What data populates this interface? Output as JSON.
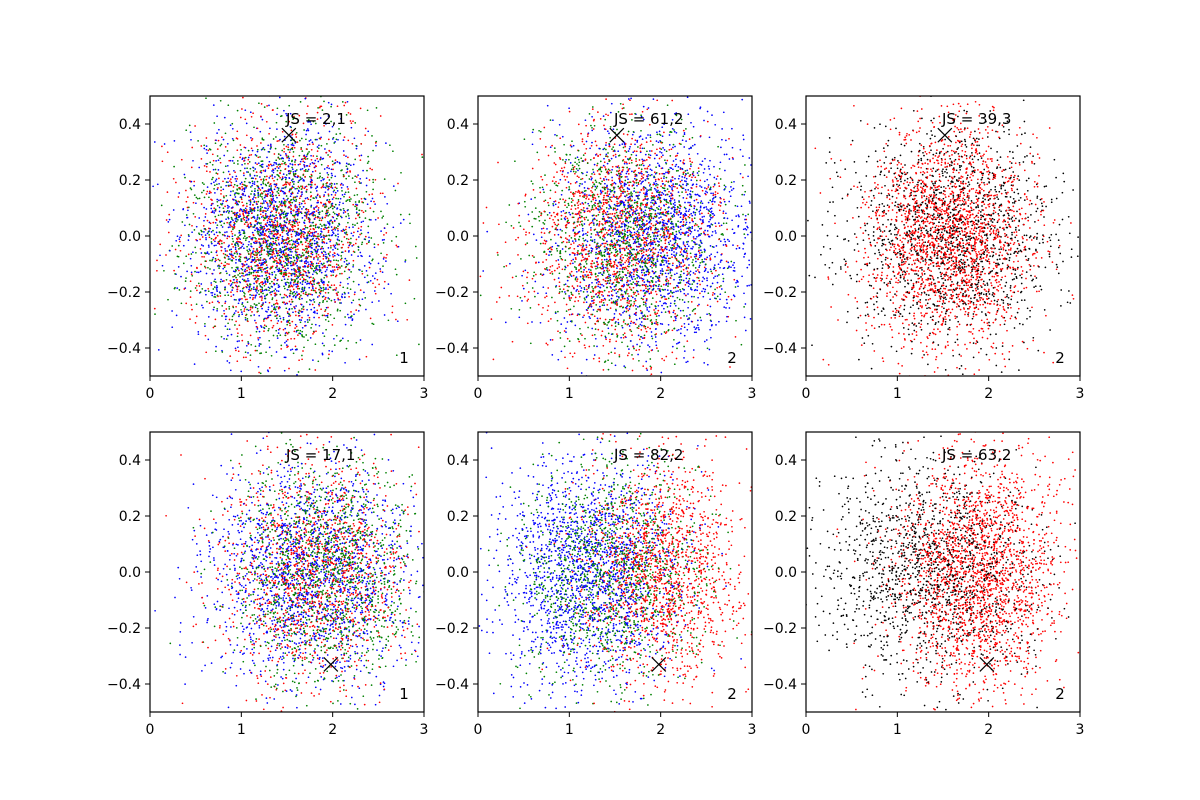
{
  "figure": {
    "layout": "2x3 grid of scatter panels",
    "colors": {
      "blue": "#0000ff",
      "green": "#008000",
      "red": "#ff0000",
      "black": "#000000",
      "marker": "#000000"
    }
  },
  "chart_data": [
    {
      "type": "scatter",
      "title": "",
      "xlabel": "",
      "ylabel": "",
      "xlim": [
        0,
        3
      ],
      "ylim": [
        -0.5,
        0.5
      ],
      "xticks": [
        "0",
        "1",
        "2",
        "3"
      ],
      "yticks": [
        "−0.4",
        "−0.2",
        "0.0",
        "0.2",
        "0.4"
      ],
      "grid": false,
      "annotation": "JS = 2,1",
      "corner_label": "1",
      "marker": {
        "symbol": "x",
        "x": 1.52,
        "y": 0.36
      },
      "series": [
        {
          "color": "#0000ff",
          "center_x": 1.45,
          "center_y": 0.0,
          "spread_x": 0.52,
          "spread_y": 0.2,
          "count": 1600
        },
        {
          "color": "#008000",
          "center_x": 1.45,
          "center_y": 0.0,
          "spread_x": 0.5,
          "spread_y": 0.2,
          "count": 1400
        },
        {
          "color": "#ff0000",
          "center_x": 1.45,
          "center_y": 0.0,
          "spread_x": 0.5,
          "spread_y": 0.2,
          "count": 1300
        }
      ]
    },
    {
      "type": "scatter",
      "title": "",
      "xlabel": "",
      "ylabel": "",
      "xlim": [
        0,
        3
      ],
      "ylim": [
        -0.5,
        0.5
      ],
      "xticks": [
        "0",
        "1",
        "2",
        "3"
      ],
      "yticks": [
        "−0.4",
        "−0.2",
        "0.0",
        "0.2",
        "0.4"
      ],
      "grid": false,
      "annotation": "JS = 61,2",
      "corner_label": "2",
      "marker": {
        "symbol": "x",
        "x": 1.52,
        "y": 0.36
      },
      "series": [
        {
          "color": "#0000ff",
          "center_x": 1.95,
          "center_y": 0.0,
          "spread_x": 0.55,
          "spread_y": 0.2,
          "count": 1700
        },
        {
          "color": "#008000",
          "center_x": 1.6,
          "center_y": 0.0,
          "spread_x": 0.5,
          "spread_y": 0.2,
          "count": 1300
        },
        {
          "color": "#ff0000",
          "center_x": 1.55,
          "center_y": 0.0,
          "spread_x": 0.5,
          "spread_y": 0.2,
          "count": 1500
        }
      ]
    },
    {
      "type": "scatter",
      "title": "",
      "xlabel": "",
      "ylabel": "",
      "xlim": [
        0,
        3
      ],
      "ylim": [
        -0.5,
        0.5
      ],
      "xticks": [
        "0",
        "1",
        "2",
        "3"
      ],
      "yticks": [
        "−0.4",
        "−0.2",
        "0.0",
        "0.2",
        "0.4"
      ],
      "grid": false,
      "annotation": "JS = 39,3",
      "corner_label": "2",
      "marker": {
        "symbol": "x",
        "x": 1.52,
        "y": 0.36
      },
      "series": [
        {
          "color": "#000000",
          "center_x": 1.6,
          "center_y": 0.0,
          "spread_x": 0.6,
          "spread_y": 0.2,
          "count": 1500
        },
        {
          "color": "#ff0000",
          "center_x": 1.55,
          "center_y": 0.0,
          "spread_x": 0.45,
          "spread_y": 0.2,
          "count": 2100
        }
      ]
    },
    {
      "type": "scatter",
      "title": "",
      "xlabel": "",
      "ylabel": "",
      "xlim": [
        0,
        3
      ],
      "ylim": [
        -0.5,
        0.5
      ],
      "xticks": [
        "0",
        "1",
        "2",
        "3"
      ],
      "yticks": [
        "−0.4",
        "−0.2",
        "0.0",
        "0.2",
        "0.4"
      ],
      "grid": false,
      "annotation": "JS = 17,1",
      "corner_label": "1",
      "marker": {
        "symbol": "x",
        "x": 1.98,
        "y": -0.33
      },
      "series": [
        {
          "color": "#0000ff",
          "center_x": 1.75,
          "center_y": 0.0,
          "spread_x": 0.55,
          "spread_y": 0.2,
          "count": 1600
        },
        {
          "color": "#008000",
          "center_x": 1.9,
          "center_y": 0.0,
          "spread_x": 0.5,
          "spread_y": 0.2,
          "count": 1400
        },
        {
          "color": "#ff0000",
          "center_x": 1.8,
          "center_y": 0.0,
          "spread_x": 0.5,
          "spread_y": 0.2,
          "count": 1300
        }
      ]
    },
    {
      "type": "scatter",
      "title": "",
      "xlabel": "",
      "ylabel": "",
      "xlim": [
        0,
        3
      ],
      "ylim": [
        -0.5,
        0.5
      ],
      "xticks": [
        "0",
        "1",
        "2",
        "3"
      ],
      "yticks": [
        "−0.4",
        "−0.2",
        "0.0",
        "0.2",
        "0.4"
      ],
      "grid": false,
      "annotation": "JS = 82,2",
      "corner_label": "2",
      "marker": {
        "symbol": "x",
        "x": 1.98,
        "y": -0.33
      },
      "series": [
        {
          "color": "#0000ff",
          "center_x": 1.2,
          "center_y": 0.0,
          "spread_x": 0.5,
          "spread_y": 0.2,
          "count": 1700
        },
        {
          "color": "#008000",
          "center_x": 1.5,
          "center_y": 0.0,
          "spread_x": 0.5,
          "spread_y": 0.2,
          "count": 1300
        },
        {
          "color": "#ff0000",
          "center_x": 2.0,
          "center_y": 0.0,
          "spread_x": 0.45,
          "spread_y": 0.2,
          "count": 1500
        }
      ]
    },
    {
      "type": "scatter",
      "title": "",
      "xlabel": "",
      "ylabel": "",
      "xlim": [
        0,
        3
      ],
      "ylim": [
        -0.5,
        0.5
      ],
      "xticks": [
        "0",
        "1",
        "2",
        "3"
      ],
      "yticks": [
        "−0.4",
        "−0.2",
        "0.0",
        "0.2",
        "0.4"
      ],
      "grid": false,
      "annotation": "JS = 63,2",
      "corner_label": "2",
      "marker": {
        "symbol": "x",
        "x": 1.98,
        "y": -0.33
      },
      "series": [
        {
          "color": "#000000",
          "center_x": 1.35,
          "center_y": 0.0,
          "spread_x": 0.6,
          "spread_y": 0.2,
          "count": 1500
        },
        {
          "color": "#ff0000",
          "center_x": 1.9,
          "center_y": 0.0,
          "spread_x": 0.45,
          "spread_y": 0.2,
          "count": 2100
        }
      ]
    }
  ]
}
